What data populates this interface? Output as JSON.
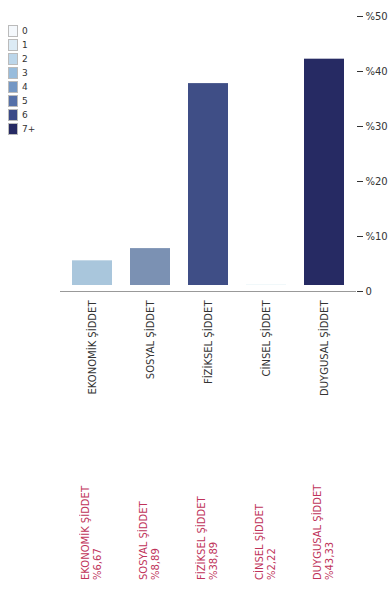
{
  "chart_data": {
    "type": "bar",
    "categories": [
      "EKONOMİK ŞİDDET",
      "SOSYAL ŞİDDET",
      "FİZİKSEL ŞİDDET",
      "CİNSEL ŞİDDET",
      "DUYGUSAL ŞİDDET"
    ],
    "values": [
      6.67,
      8.89,
      38.89,
      2.22,
      43.33
    ],
    "value_labels": [
      "%6,67",
      "%8,89",
      "%38,89",
      "%2,22",
      "%43,33"
    ],
    "data_labels": true,
    "colors": [
      "#a9c6dc",
      "#7b91b3",
      "#3f4e86",
      "#bcdbe8",
      "#262a63"
    ],
    "ylim": [
      0,
      50
    ],
    "yticks": [
      0,
      {
        "value": 10,
        "label": "%10"
      },
      {
        "value": 20,
        "label": "%20"
      },
      {
        "value": 30,
        "label": "%30"
      },
      {
        "value": 40,
        "label": "%40"
      },
      {
        "value": 50,
        "label": "%50"
      }
    ],
    "grid": false
  },
  "map_legend": {
    "labels": [
      "0",
      "1",
      "2",
      "3",
      "4",
      "5",
      "6",
      "7+"
    ],
    "colors": [
      "#f4f8fc",
      "#dcebf5",
      "#bcd6ea",
      "#98bcdc",
      "#7497c4",
      "#5570a8",
      "#3b4a88",
      "#262a63"
    ]
  }
}
